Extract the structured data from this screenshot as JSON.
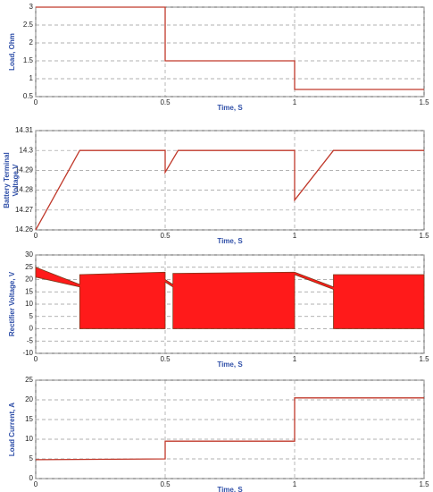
{
  "chart_data": [
    {
      "type": "line",
      "ylabel": "Load, Ohm",
      "xlabel": "Time, S",
      "x": [
        0,
        0.5,
        0.5,
        1,
        1,
        1.5
      ],
      "series": [
        {
          "color": "#c0392b",
          "values": [
            3,
            3,
            1.5,
            1.5,
            0.7,
            0.7
          ]
        }
      ],
      "xlim": [
        0,
        1.5
      ],
      "xticks": [
        0,
        0.5,
        1,
        1.5
      ],
      "ylim": [
        0.5,
        3
      ],
      "yticks": [
        0.5,
        1,
        1.5,
        2,
        2.5,
        3
      ],
      "grid": true
    },
    {
      "type": "line",
      "ylabel": [
        "Battery Terminal",
        "Voltage,V"
      ],
      "xlabel": "Time, S",
      "x": [
        0,
        0.17,
        0.5,
        0.5,
        0.55,
        1,
        1,
        1.15,
        1.5
      ],
      "series": [
        {
          "color": "#c0392b",
          "values": [
            14.26,
            14.3,
            14.3,
            14.289,
            14.3,
            14.3,
            14.275,
            14.3,
            14.3
          ]
        }
      ],
      "xlim": [
        0,
        1.5
      ],
      "xticks": [
        0,
        0.5,
        1,
        1.5
      ],
      "ylim": [
        14.26,
        14.31
      ],
      "yticks": [
        14.26,
        14.27,
        14.28,
        14.29,
        14.3,
        14.31
      ],
      "grid": true
    },
    {
      "type": "band",
      "ylabel": "Rectifier Voltage, V",
      "xlabel": "Time, S",
      "x": [
        0,
        0.17,
        0.17,
        0.5,
        0.5,
        0.53,
        0.53,
        1,
        1,
        1.15,
        1.15,
        1.5
      ],
      "series": [
        {
          "color": "#ff1a1a",
          "values": [
            25,
            18,
            22,
            23,
            20,
            18,
            22.5,
            23,
            23,
            17,
            22,
            22
          ]
        },
        {
          "color": "#ff1a1a",
          "values": [
            21,
            17,
            0,
            0,
            19,
            17,
            0,
            0,
            22,
            16,
            0,
            0
          ]
        }
      ],
      "xlim": [
        0,
        1.5
      ],
      "xticks": [
        0,
        0.5,
        1,
        1.5
      ],
      "ylim": [
        -10,
        30
      ],
      "yticks": [
        -10,
        -5,
        0,
        5,
        10,
        15,
        20,
        25,
        30
      ],
      "grid": true
    },
    {
      "type": "line",
      "ylabel": "Load Current, A",
      "xlabel": "Time, S",
      "x": [
        0,
        0.5,
        0.5,
        1,
        1,
        1.5
      ],
      "series": [
        {
          "color": "#c0392b",
          "values": [
            4.8,
            5,
            9.5,
            9.5,
            20.5,
            20.5
          ]
        }
      ],
      "xlim": [
        0,
        1.5
      ],
      "xticks": [
        0,
        0.5,
        1,
        1.5
      ],
      "ylim": [
        0,
        25
      ],
      "yticks": [
        0,
        5,
        10,
        15,
        20,
        25
      ],
      "grid": true
    }
  ]
}
